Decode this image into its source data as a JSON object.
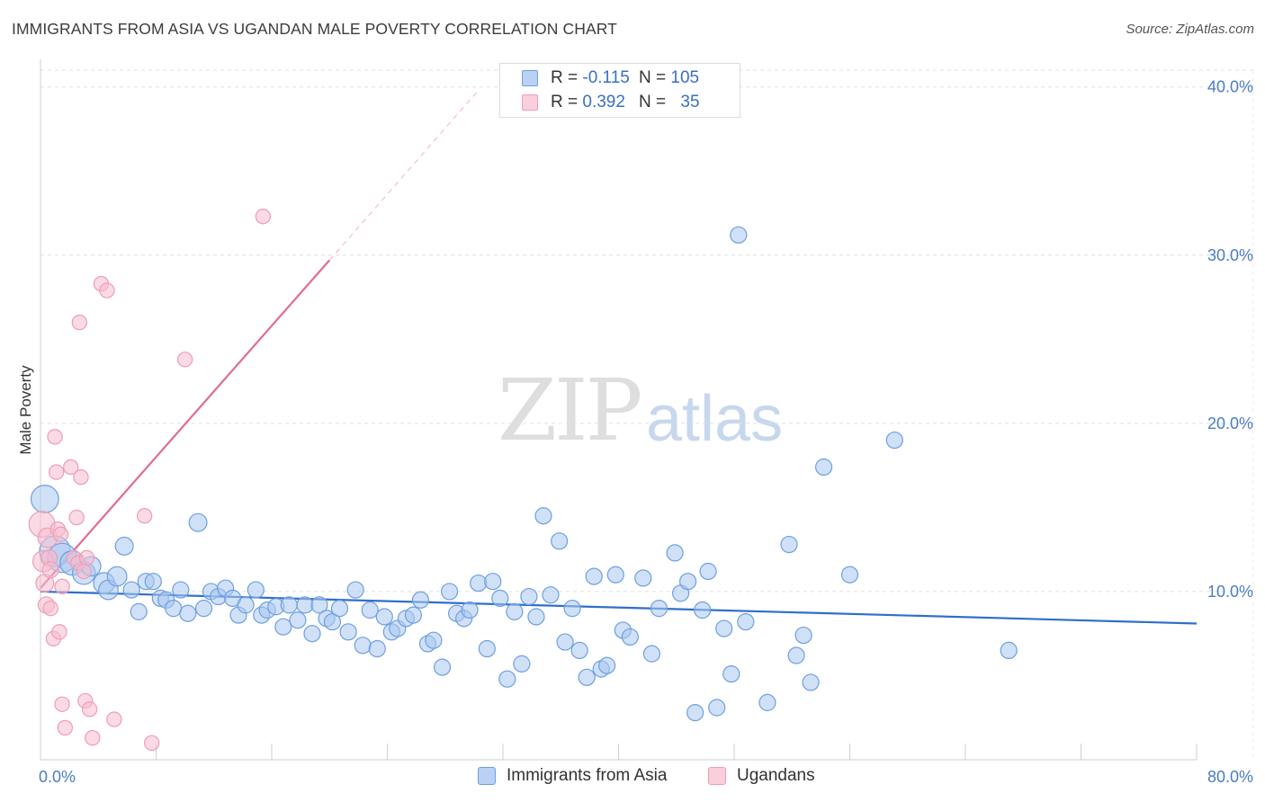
{
  "title": "IMMIGRANTS FROM ASIA VS UGANDAN MALE POVERTY CORRELATION CHART",
  "source": "Source: ZipAtlas.com",
  "watermark": {
    "zip": "ZIP",
    "atlas": "atlas"
  },
  "legend": {
    "rows": [
      {
        "r_label": "R = ",
        "r_value": "-0.115",
        "n_label": "N = ",
        "n_value": "105",
        "color": "#a9c8f1"
      },
      {
        "r_label": "R = ",
        "r_value": "0.392",
        "n_label": "N = ",
        "n_value": "35",
        "color": "#f6bccd"
      }
    ]
  },
  "bottom_legend": [
    "Immigrants from Asia",
    "Ugandans"
  ],
  "chart_data": {
    "type": "scatter",
    "title": "IMMIGRANTS FROM ASIA VS UGANDAN MALE POVERTY CORRELATION CHART",
    "ylabel": "Male Poverty",
    "xlim": [
      0,
      80
    ],
    "ylim": [
      0,
      41
    ],
    "x_tick_labels": [
      "0.0%",
      "80.0%"
    ],
    "y_tick_labels": [
      "10.0%",
      "20.0%",
      "30.0%",
      "40.0%"
    ],
    "y_ticks": [
      10,
      20,
      30,
      40
    ],
    "grid": true,
    "legend_position": "top-center",
    "series": [
      {
        "name": "Immigrants from Asia",
        "color": "#6d9fe0",
        "fill": "#a9c8f1",
        "trend": {
          "x0": 0,
          "y0": 10.0,
          "x1": 80,
          "y1": 8.1,
          "color": "#2f6fcb"
        },
        "points": [
          {
            "x": 0.3,
            "y": 15.5,
            "s": 1.7
          },
          {
            "x": 1.0,
            "y": 12.4,
            "s": 1.9
          },
          {
            "x": 1.5,
            "y": 12.0,
            "s": 1.8
          },
          {
            "x": 2.2,
            "y": 11.7,
            "s": 1.5
          },
          {
            "x": 3.0,
            "y": 11.1,
            "s": 1.4
          },
          {
            "x": 3.5,
            "y": 11.5,
            "s": 1.2
          },
          {
            "x": 4.4,
            "y": 10.5,
            "s": 1.3
          },
          {
            "x": 4.7,
            "y": 10.1,
            "s": 1.2
          },
          {
            "x": 5.3,
            "y": 10.9,
            "s": 1.2
          },
          {
            "x": 5.8,
            "y": 12.7,
            "s": 1.1
          },
          {
            "x": 6.3,
            "y": 10.1,
            "s": 1.0
          },
          {
            "x": 6.8,
            "y": 8.8,
            "s": 1.0
          },
          {
            "x": 7.3,
            "y": 10.6,
            "s": 1.0
          },
          {
            "x": 7.8,
            "y": 10.6,
            "s": 1.0
          },
          {
            "x": 8.3,
            "y": 9.6,
            "s": 1.0
          },
          {
            "x": 8.7,
            "y": 9.5,
            "s": 1.0
          },
          {
            "x": 9.2,
            "y": 9.0,
            "s": 1.0
          },
          {
            "x": 9.7,
            "y": 10.1,
            "s": 1.0
          },
          {
            "x": 10.2,
            "y": 8.7,
            "s": 1.0
          },
          {
            "x": 10.9,
            "y": 14.1,
            "s": 1.1
          },
          {
            "x": 11.3,
            "y": 9.0,
            "s": 1.0
          },
          {
            "x": 11.8,
            "y": 10.0,
            "s": 1.0
          },
          {
            "x": 12.3,
            "y": 9.7,
            "s": 1.0
          },
          {
            "x": 12.8,
            "y": 10.2,
            "s": 1.0
          },
          {
            "x": 13.3,
            "y": 9.6,
            "s": 1.0
          },
          {
            "x": 13.7,
            "y": 8.6,
            "s": 1.0
          },
          {
            "x": 14.2,
            "y": 9.2,
            "s": 1.0
          },
          {
            "x": 14.9,
            "y": 10.1,
            "s": 1.0
          },
          {
            "x": 15.3,
            "y": 8.6,
            "s": 1.0
          },
          {
            "x": 15.7,
            "y": 8.9,
            "s": 1.0
          },
          {
            "x": 16.3,
            "y": 9.1,
            "s": 1.0
          },
          {
            "x": 16.8,
            "y": 7.9,
            "s": 1.0
          },
          {
            "x": 17.2,
            "y": 9.2,
            "s": 1.0
          },
          {
            "x": 17.8,
            "y": 8.3,
            "s": 1.0
          },
          {
            "x": 18.3,
            "y": 9.2,
            "s": 1.0
          },
          {
            "x": 18.8,
            "y": 7.5,
            "s": 1.0
          },
          {
            "x": 19.3,
            "y": 9.2,
            "s": 1.0
          },
          {
            "x": 19.8,
            "y": 8.4,
            "s": 1.0
          },
          {
            "x": 20.2,
            "y": 8.2,
            "s": 1.0
          },
          {
            "x": 20.7,
            "y": 9.0,
            "s": 1.0
          },
          {
            "x": 21.3,
            "y": 7.6,
            "s": 1.0
          },
          {
            "x": 21.8,
            "y": 10.1,
            "s": 1.0
          },
          {
            "x": 22.3,
            "y": 6.8,
            "s": 1.0
          },
          {
            "x": 22.8,
            "y": 8.9,
            "s": 1.0
          },
          {
            "x": 23.3,
            "y": 6.6,
            "s": 1.0
          },
          {
            "x": 23.8,
            "y": 8.5,
            "s": 1.0
          },
          {
            "x": 24.3,
            "y": 7.6,
            "s": 1.0
          },
          {
            "x": 24.7,
            "y": 7.8,
            "s": 1.0
          },
          {
            "x": 25.3,
            "y": 8.4,
            "s": 1.0
          },
          {
            "x": 25.8,
            "y": 8.6,
            "s": 1.0
          },
          {
            "x": 26.3,
            "y": 9.5,
            "s": 1.0
          },
          {
            "x": 26.8,
            "y": 6.9,
            "s": 1.0
          },
          {
            "x": 27.2,
            "y": 7.1,
            "s": 1.0
          },
          {
            "x": 27.8,
            "y": 5.5,
            "s": 1.0
          },
          {
            "x": 28.3,
            "y": 10.0,
            "s": 1.0
          },
          {
            "x": 28.8,
            "y": 8.7,
            "s": 1.0
          },
          {
            "x": 29.3,
            "y": 8.4,
            "s": 1.0
          },
          {
            "x": 29.7,
            "y": 8.9,
            "s": 1.0
          },
          {
            "x": 30.3,
            "y": 10.5,
            "s": 1.0
          },
          {
            "x": 30.9,
            "y": 6.6,
            "s": 1.0
          },
          {
            "x": 31.3,
            "y": 10.6,
            "s": 1.0
          },
          {
            "x": 31.8,
            "y": 9.6,
            "s": 1.0
          },
          {
            "x": 32.3,
            "y": 4.8,
            "s": 1.0
          },
          {
            "x": 32.8,
            "y": 8.8,
            "s": 1.0
          },
          {
            "x": 33.3,
            "y": 5.7,
            "s": 1.0
          },
          {
            "x": 33.8,
            "y": 9.7,
            "s": 1.0
          },
          {
            "x": 34.3,
            "y": 8.5,
            "s": 1.0
          },
          {
            "x": 34.8,
            "y": 14.5,
            "s": 1.0
          },
          {
            "x": 35.3,
            "y": 9.8,
            "s": 1.0
          },
          {
            "x": 35.9,
            "y": 13.0,
            "s": 1.0
          },
          {
            "x": 36.3,
            "y": 7.0,
            "s": 1.0
          },
          {
            "x": 36.8,
            "y": 9.0,
            "s": 1.0
          },
          {
            "x": 37.3,
            "y": 6.5,
            "s": 1.0
          },
          {
            "x": 37.8,
            "y": 4.9,
            "s": 1.0
          },
          {
            "x": 38.3,
            "y": 10.9,
            "s": 1.0
          },
          {
            "x": 38.8,
            "y": 5.4,
            "s": 1.0
          },
          {
            "x": 39.2,
            "y": 5.6,
            "s": 1.0
          },
          {
            "x": 39.8,
            "y": 11.0,
            "s": 1.0
          },
          {
            "x": 40.3,
            "y": 7.7,
            "s": 1.0
          },
          {
            "x": 40.8,
            "y": 7.3,
            "s": 1.0
          },
          {
            "x": 41.7,
            "y": 10.8,
            "s": 1.0
          },
          {
            "x": 42.3,
            "y": 6.3,
            "s": 1.0
          },
          {
            "x": 42.8,
            "y": 9.0,
            "s": 1.0
          },
          {
            "x": 43.9,
            "y": 12.3,
            "s": 1.0
          },
          {
            "x": 44.3,
            "y": 9.9,
            "s": 1.0
          },
          {
            "x": 44.8,
            "y": 10.6,
            "s": 1.0
          },
          {
            "x": 45.3,
            "y": 2.8,
            "s": 1.0
          },
          {
            "x": 45.8,
            "y": 8.9,
            "s": 1.0
          },
          {
            "x": 46.2,
            "y": 11.2,
            "s": 1.0
          },
          {
            "x": 46.8,
            "y": 3.1,
            "s": 1.0
          },
          {
            "x": 47.3,
            "y": 7.8,
            "s": 1.0
          },
          {
            "x": 47.8,
            "y": 5.1,
            "s": 1.0
          },
          {
            "x": 48.3,
            "y": 31.2,
            "s": 1.0
          },
          {
            "x": 48.8,
            "y": 8.2,
            "s": 1.0
          },
          {
            "x": 50.3,
            "y": 3.4,
            "s": 1.0
          },
          {
            "x": 51.8,
            "y": 12.8,
            "s": 1.0
          },
          {
            "x": 52.3,
            "y": 6.2,
            "s": 1.0
          },
          {
            "x": 52.8,
            "y": 7.4,
            "s": 1.0
          },
          {
            "x": 53.3,
            "y": 4.6,
            "s": 1.0
          },
          {
            "x": 54.2,
            "y": 17.4,
            "s": 1.0
          },
          {
            "x": 56.0,
            "y": 11.0,
            "s": 1.0
          },
          {
            "x": 59.1,
            "y": 19.0,
            "s": 1.0
          },
          {
            "x": 67.0,
            "y": 6.5,
            "s": 1.0
          }
        ]
      },
      {
        "name": "Ugandans",
        "color": "#ef9db7",
        "fill": "#f6bccd",
        "trend": {
          "x0": 0,
          "y0": 10.2,
          "x1": 20.0,
          "y1": 29.7,
          "color": "#e06c95",
          "dash_to": {
            "x": 30.3,
            "y": 39.8
          }
        },
        "points": [
          {
            "x": 0.1,
            "y": 14.0,
            "s": 1.6
          },
          {
            "x": 0.2,
            "y": 11.8,
            "s": 1.3
          },
          {
            "x": 0.3,
            "y": 10.5,
            "s": 1.1
          },
          {
            "x": 0.4,
            "y": 9.2,
            "s": 1.0
          },
          {
            "x": 0.5,
            "y": 13.2,
            "s": 1.2
          },
          {
            "x": 0.6,
            "y": 12.0,
            "s": 1.0
          },
          {
            "x": 0.7,
            "y": 11.3,
            "s": 1.0
          },
          {
            "x": 0.7,
            "y": 9.0,
            "s": 0.9
          },
          {
            "x": 0.9,
            "y": 7.2,
            "s": 0.9
          },
          {
            "x": 1.0,
            "y": 19.2,
            "s": 0.9
          },
          {
            "x": 1.1,
            "y": 17.1,
            "s": 0.9
          },
          {
            "x": 1.2,
            "y": 13.7,
            "s": 0.9
          },
          {
            "x": 1.3,
            "y": 7.6,
            "s": 0.9
          },
          {
            "x": 1.4,
            "y": 13.4,
            "s": 0.9
          },
          {
            "x": 1.5,
            "y": 10.3,
            "s": 0.9
          },
          {
            "x": 1.5,
            "y": 3.3,
            "s": 0.9
          },
          {
            "x": 1.7,
            "y": 1.9,
            "s": 0.9
          },
          {
            "x": 2.1,
            "y": 17.4,
            "s": 0.9
          },
          {
            "x": 2.3,
            "y": 12.0,
            "s": 0.9
          },
          {
            "x": 2.5,
            "y": 14.4,
            "s": 0.9
          },
          {
            "x": 2.6,
            "y": 11.7,
            "s": 0.9
          },
          {
            "x": 2.7,
            "y": 26.0,
            "s": 0.9
          },
          {
            "x": 2.8,
            "y": 16.8,
            "s": 0.9
          },
          {
            "x": 3.1,
            "y": 3.5,
            "s": 0.9
          },
          {
            "x": 3.2,
            "y": 12.0,
            "s": 0.9
          },
          {
            "x": 3.4,
            "y": 3.0,
            "s": 0.9
          },
          {
            "x": 3.6,
            "y": 1.3,
            "s": 0.9
          },
          {
            "x": 4.2,
            "y": 28.3,
            "s": 0.9
          },
          {
            "x": 4.6,
            "y": 27.9,
            "s": 0.9
          },
          {
            "x": 5.1,
            "y": 2.4,
            "s": 0.9
          },
          {
            "x": 7.2,
            "y": 14.5,
            "s": 0.9
          },
          {
            "x": 7.7,
            "y": 1.0,
            "s": 0.9
          },
          {
            "x": 10.0,
            "y": 23.8,
            "s": 0.9
          },
          {
            "x": 15.4,
            "y": 32.3,
            "s": 0.9
          },
          {
            "x": 3.0,
            "y": 11.2,
            "s": 0.9
          }
        ]
      }
    ]
  }
}
